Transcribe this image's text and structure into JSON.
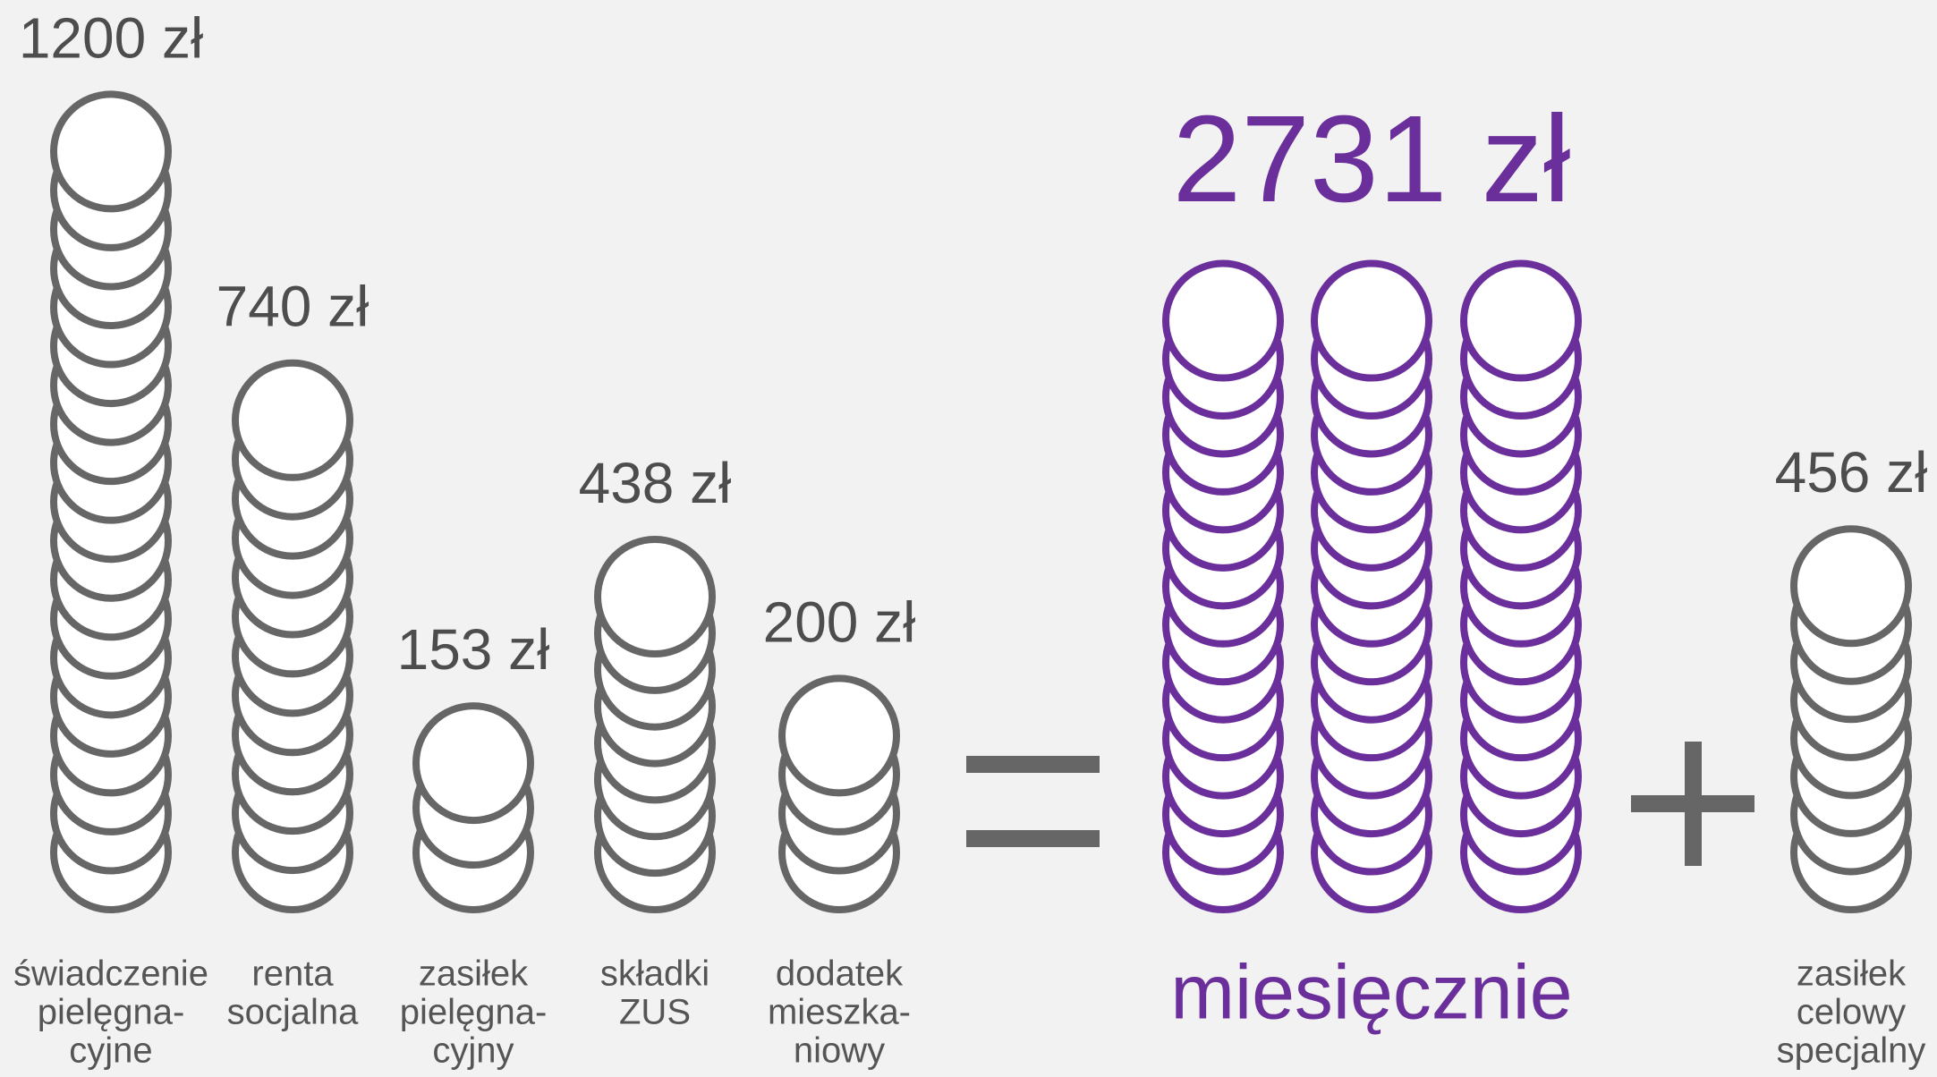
{
  "chart_data": {
    "type": "coin_stack",
    "categories": [
      [
        "świadczenie",
        "pielęgna-",
        "cyjne"
      ],
      [
        "renta",
        "socjalna"
      ],
      [
        "zasiłek",
        "pielęgna-",
        "cyjny"
      ],
      [
        "składki",
        "ZUS"
      ],
      [
        "dodatek",
        "mieszka-",
        "niowy"
      ]
    ],
    "values": [
      1200,
      740,
      153,
      438,
      200
    ],
    "value_labels": [
      "1200 zł",
      "740 zł",
      "153 zł",
      "438 zł",
      "200 zł"
    ],
    "color": "#666666",
    "total": {
      "value": 2731,
      "value_label": "2731 zł",
      "label": "miesięcznie",
      "color": "#6b2f9b"
    },
    "extra": {
      "category": [
        "zasiłek",
        "celowy",
        "specjalny"
      ],
      "value": 456,
      "value_label": "456 zł"
    }
  }
}
